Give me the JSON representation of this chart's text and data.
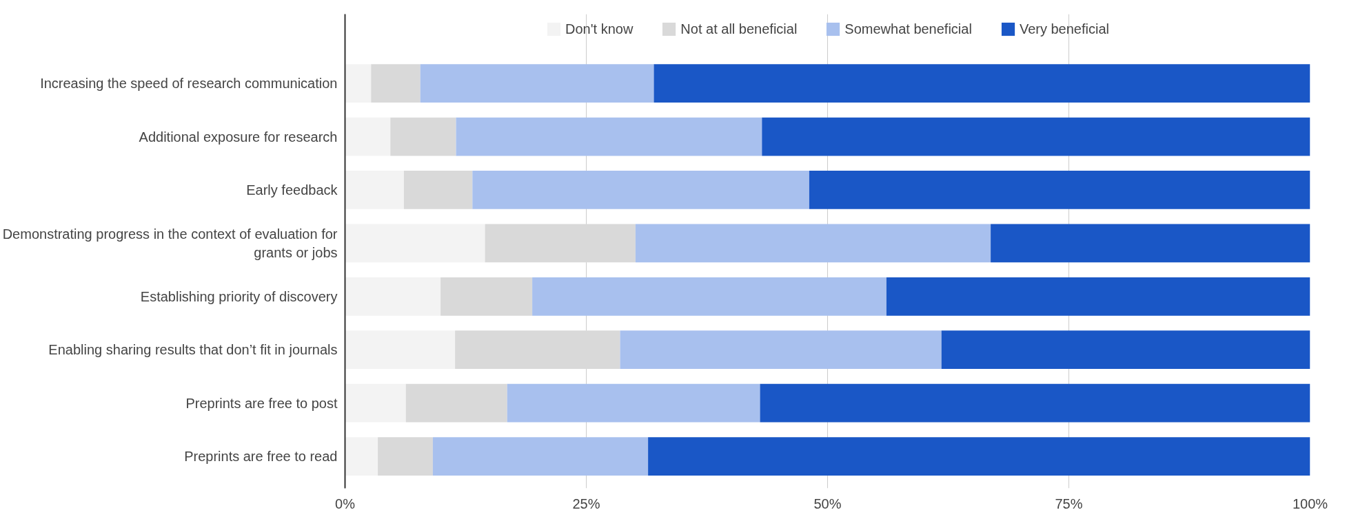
{
  "chart_data": {
    "type": "bar",
    "orientation": "horizontal",
    "stacked": true,
    "categories": [
      "Increasing the speed of research communication",
      "Additional exposure for research",
      "Early feedback",
      "Demonstrating progress in the context of evaluation for grants or jobs",
      "Establishing priority of discovery",
      "Enabling sharing results that don’t fit in journals",
      "Preprints are free to post",
      "Preprints are free to read"
    ],
    "series": [
      {
        "name": "Don't know",
        "color": "#f3f3f3",
        "values": [
          2.7,
          4.7,
          6.1,
          14.5,
          9.9,
          11.4,
          6.3,
          3.4
        ]
      },
      {
        "name": "Not at all beneficial",
        "color": "#d9d9d9",
        "values": [
          5.1,
          6.8,
          7.1,
          15.6,
          9.5,
          17.1,
          10.5,
          5.7
        ]
      },
      {
        "name": "Somewhat beneficial",
        "color": "#a8c0ee",
        "values": [
          24.2,
          31.7,
          34.9,
          36.8,
          36.7,
          33.3,
          26.2,
          22.3
        ]
      },
      {
        "name": "Very beneficial",
        "color": "#1a57c6",
        "values": [
          68.0,
          56.8,
          51.9,
          33.1,
          43.9,
          38.2,
          57.0,
          68.6
        ]
      }
    ],
    "xlim": [
      0,
      100
    ],
    "xticks": [
      {
        "value": 0,
        "label": "0%"
      },
      {
        "value": 25,
        "label": "25%"
      },
      {
        "value": 50,
        "label": "50%"
      },
      {
        "value": 75,
        "label": "75%"
      },
      {
        "value": 100,
        "label": "100%"
      }
    ],
    "grid": "x",
    "legend": "top"
  }
}
